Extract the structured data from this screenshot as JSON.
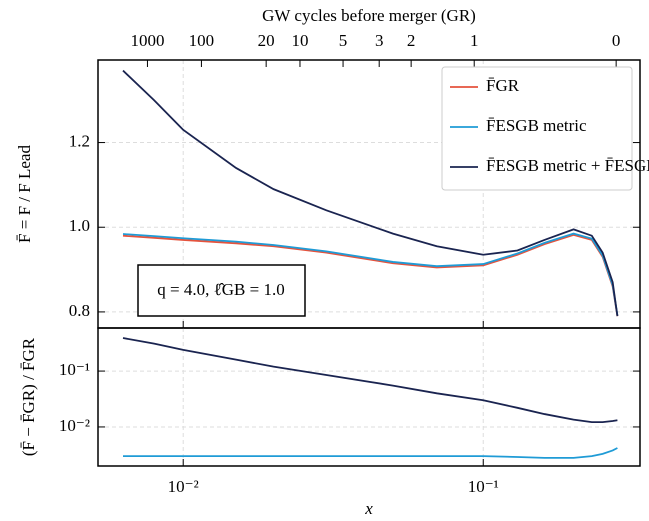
{
  "chart_data": [
    {
      "type": "line",
      "x2label": "GW cycles before merger (GR)",
      "ylabel": "F̄ = F / F Lead",
      "xscale": "log",
      "xlim": [
        0.0052,
        0.333
      ],
      "ylim": [
        0.762,
        1.395
      ],
      "xticks": [
        0.01,
        0.1
      ],
      "x2ticks": [
        {
          "value": 0.0076,
          "label": "1000"
        },
        {
          "value": 0.0115,
          "label": "100"
        },
        {
          "value": 0.0189,
          "label": "20"
        },
        {
          "value": 0.0245,
          "label": "10"
        },
        {
          "value": 0.0341,
          "label": "5"
        },
        {
          "value": 0.045,
          "label": "3"
        },
        {
          "value": 0.0575,
          "label": "2"
        },
        {
          "value": 0.0933,
          "label": "1"
        },
        {
          "value": 0.2773,
          "label": "0"
        }
      ],
      "yticks": [
        0.8,
        {
          "value": 1,
          "label": "1.0"
        },
        1.2
      ],
      "grid": true,
      "legend": "upper right",
      "annotation": "q = 4.0,  ℓ̂GB = 1.0",
      "x": [
        0.0063,
        0.008,
        0.01,
        0.015,
        0.02,
        0.03,
        0.05,
        0.07,
        0.1,
        0.13,
        0.16,
        0.2,
        0.23,
        0.25,
        0.27,
        0.28
      ],
      "series": [
        {
          "name": "F̄GR",
          "color": "#e5533d",
          "values": [
            0.98,
            0.975,
            0.97,
            0.962,
            0.955,
            0.94,
            0.915,
            0.905,
            0.91,
            0.935,
            0.96,
            0.982,
            0.97,
            0.93,
            0.86,
            0.79
          ]
        },
        {
          "name": "F̄ESGB metric",
          "color": "#1f9bd6",
          "values": [
            0.984,
            0.979,
            0.974,
            0.966,
            0.958,
            0.943,
            0.918,
            0.908,
            0.913,
            0.938,
            0.963,
            0.985,
            0.973,
            0.933,
            0.863,
            0.792
          ]
        },
        {
          "name": "F̄ESGB metric + F̄ESGB scalar",
          "color": "#1a2450",
          "values": [
            1.37,
            1.3,
            1.23,
            1.14,
            1.09,
            1.04,
            0.985,
            0.955,
            0.935,
            0.945,
            0.97,
            0.995,
            0.98,
            0.94,
            0.87,
            0.79
          ]
        }
      ]
    },
    {
      "type": "line",
      "xlabel": "x",
      "ylabel": "(F̄ − F̄GR) / F̄GR",
      "xscale": "log",
      "yscale": "log",
      "xlim": [
        0.0052,
        0.333
      ],
      "ylim": [
        0.002,
        0.59
      ],
      "xticks": [
        {
          "value": 0.01,
          "label": "10⁻²"
        },
        {
          "value": 0.1,
          "label": "10⁻¹"
        }
      ],
      "yticks": [
        {
          "value": 0.01,
          "label": "10⁻²"
        },
        {
          "value": 0.1,
          "label": "10⁻¹"
        }
      ],
      "grid": true,
      "x": [
        0.0063,
        0.008,
        0.01,
        0.015,
        0.02,
        0.03,
        0.05,
        0.07,
        0.1,
        0.13,
        0.16,
        0.2,
        0.23,
        0.25,
        0.27,
        0.28
      ],
      "series": [
        {
          "color": "#1f9bd6",
          "values": [
            0.003,
            0.003,
            0.003,
            0.003,
            0.003,
            0.003,
            0.003,
            0.003,
            0.003,
            0.0029,
            0.0028,
            0.0028,
            0.003,
            0.0033,
            0.0038,
            0.0042
          ]
        },
        {
          "color": "#1a2450",
          "values": [
            0.39,
            0.31,
            0.24,
            0.16,
            0.12,
            0.085,
            0.055,
            0.04,
            0.03,
            0.022,
            0.017,
            0.0135,
            0.0122,
            0.0122,
            0.0128,
            0.0132
          ]
        }
      ]
    }
  ]
}
